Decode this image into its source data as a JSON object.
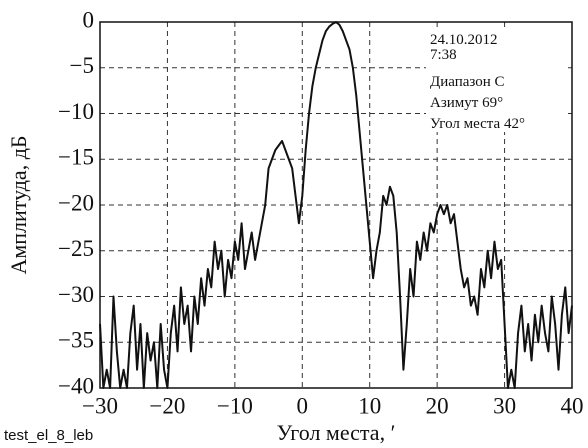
{
  "chart_data": {
    "type": "line",
    "ylabel": "Амплитуда, дБ",
    "xlabel": "Угол места, ′",
    "annotations": [
      "24.10.2012",
      "7:38",
      "Диапазон С",
      "Азимут 69°",
      "Угол места 42°"
    ],
    "footnote": "test_el_8_leb",
    "xlim": [
      -30,
      40
    ],
    "ylim": [
      -40,
      0
    ],
    "xticks": [
      {
        "value": -30,
        "label": "−30"
      },
      {
        "value": -20,
        "label": "−20"
      },
      {
        "value": -10,
        "label": "−10"
      },
      0,
      10,
      20,
      30,
      40
    ],
    "yticks": [
      0,
      {
        "value": -5,
        "label": "−5"
      },
      {
        "value": -10,
        "label": "−10"
      },
      {
        "value": -15,
        "label": "−15"
      },
      {
        "value": -20,
        "label": "−20"
      },
      {
        "value": -25,
        "label": "−25"
      },
      {
        "value": -30,
        "label": "−30"
      },
      {
        "value": -35,
        "label": "−35"
      },
      {
        "value": -40,
        "label": "−40"
      }
    ],
    "grid": true,
    "x": [
      -30,
      -29.5,
      -29,
      -28.5,
      -28,
      -27.5,
      -27,
      -26.5,
      -26,
      -25.5,
      -25,
      -24.5,
      -24,
      -23.5,
      -23,
      -22.5,
      -22,
      -21.5,
      -21,
      -20.5,
      -20,
      -19.5,
      -19,
      -18.5,
      -18,
      -17.5,
      -17,
      -16.5,
      -16,
      -15.5,
      -15,
      -14.5,
      -14,
      -13.5,
      -13,
      -12.5,
      -12,
      -11.5,
      -11,
      -10.5,
      -10,
      -9.5,
      -9,
      -8.5,
      -8,
      -7.5,
      -7,
      -6.5,
      -6,
      -5.5,
      -5,
      -4.5,
      -4,
      -3.5,
      -3,
      -2.5,
      -2,
      -1.5,
      -1,
      -0.5,
      0,
      0.5,
      1,
      1.5,
      2,
      2.5,
      3,
      3.5,
      4,
      4.5,
      5,
      5.5,
      6,
      6.5,
      7,
      7.5,
      8,
      8.5,
      9,
      9.5,
      10,
      10.5,
      11,
      11.5,
      12,
      12.5,
      13,
      13.5,
      14,
      14.5,
      15,
      15.5,
      16,
      16.5,
      17,
      17.5,
      18,
      18.5,
      19,
      19.5,
      20,
      20.5,
      21,
      21.5,
      22,
      22.5,
      23,
      23.5,
      24,
      24.5,
      25,
      25.5,
      26,
      26.5,
      27,
      27.5,
      28,
      28.5,
      29,
      29.5,
      30,
      30.5,
      31,
      31.5,
      32,
      32.5,
      33,
      33.5,
      34,
      34.5,
      35,
      35.5,
      36,
      36.5,
      37,
      37.5,
      38,
      38.5,
      39,
      39.5,
      40
    ],
    "series": [
      {
        "color": "#111111",
        "values": [
          -33,
          -40,
          -38,
          -40,
          -30,
          -36,
          -40,
          -38,
          -40,
          -34,
          -31,
          -38,
          -33,
          -40,
          -34,
          -37,
          -35,
          -40,
          -33,
          -38,
          -40,
          -34,
          -31,
          -36,
          -29,
          -33,
          -31,
          -36,
          -30,
          -33,
          -28,
          -31,
          -27,
          -29,
          -24,
          -27,
          -25,
          -30,
          -26,
          -28,
          -24,
          -26,
          -22,
          -27,
          -25,
          -23,
          -26,
          -24,
          -22,
          -20,
          -16,
          -15,
          -14,
          -13.5,
          -13,
          -14,
          -15,
          -16,
          -19,
          -22,
          -19,
          -14,
          -10,
          -7,
          -5,
          -3.5,
          -2,
          -1,
          -0.5,
          -0.2,
          0,
          -0.3,
          -1,
          -2,
          -3,
          -5,
          -8,
          -12,
          -16,
          -20,
          -24,
          -28,
          -25,
          -23,
          -19,
          -20,
          -18,
          -19,
          -23,
          -30,
          -38,
          -33,
          -27,
          -30,
          -24,
          -26,
          -23,
          -25,
          -22,
          -23,
          -21,
          -20,
          -21,
          -20,
          -22,
          -21,
          -24,
          -27,
          -29,
          -28,
          -31,
          -30,
          -32,
          -27,
          -29,
          -25,
          -28,
          -24,
          -27,
          -26,
          -33,
          -40,
          -38,
          -40,
          -34,
          -31,
          -36,
          -33,
          -37,
          -32,
          -35,
          -31,
          -34,
          -36,
          -30,
          -33,
          -38,
          -32,
          -29,
          -34,
          -31
        ]
      }
    ]
  }
}
